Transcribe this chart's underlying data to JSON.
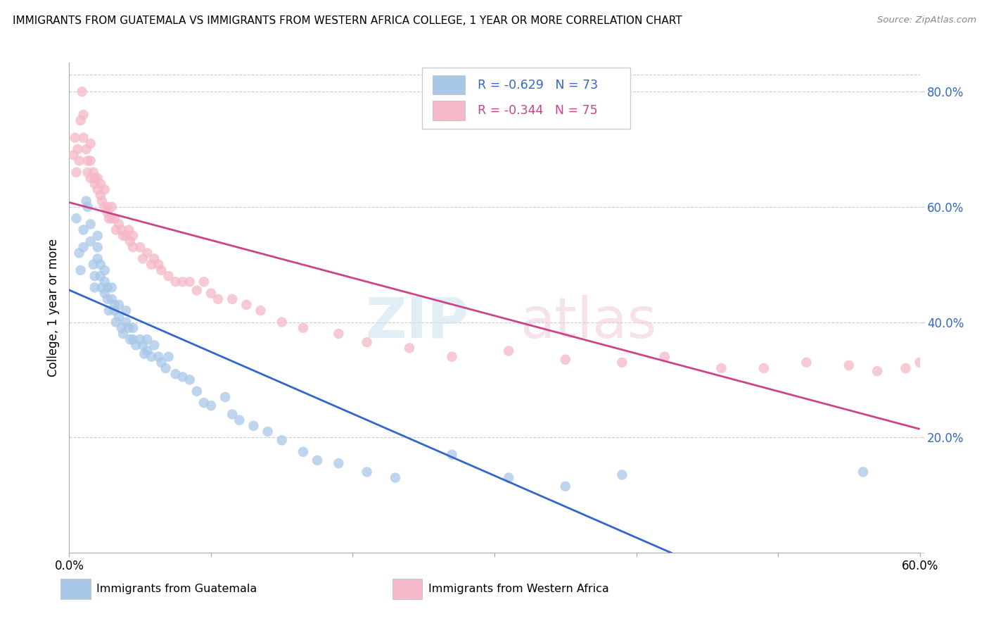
{
  "title": "IMMIGRANTS FROM GUATEMALA VS IMMIGRANTS FROM WESTERN AFRICA COLLEGE, 1 YEAR OR MORE CORRELATION CHART",
  "source": "Source: ZipAtlas.com",
  "ylabel": "College, 1 year or more",
  "xlim": [
    0.0,
    0.6
  ],
  "ylim": [
    0.0,
    0.85
  ],
  "R_blue": -0.629,
  "N_blue": 73,
  "R_pink": -0.344,
  "N_pink": 75,
  "color_blue": "#a8c8e8",
  "color_pink": "#f4b8c8",
  "line_color_blue": "#3366cc",
  "line_color_pink": "#cc4488",
  "legend_blue_label": "Immigrants from Guatemala",
  "legend_pink_label": "Immigrants from Western Africa",
  "watermark_zip": "ZIP",
  "watermark_atlas": "atlas",
  "guatemala_x": [
    0.005,
    0.007,
    0.008,
    0.01,
    0.01,
    0.012,
    0.013,
    0.015,
    0.015,
    0.017,
    0.018,
    0.018,
    0.02,
    0.02,
    0.02,
    0.022,
    0.022,
    0.023,
    0.025,
    0.025,
    0.025,
    0.027,
    0.027,
    0.028,
    0.03,
    0.03,
    0.032,
    0.032,
    0.033,
    0.035,
    0.035,
    0.037,
    0.038,
    0.04,
    0.04,
    0.042,
    0.043,
    0.045,
    0.045,
    0.047,
    0.05,
    0.052,
    0.053,
    0.055,
    0.055,
    0.058,
    0.06,
    0.063,
    0.065,
    0.068,
    0.07,
    0.075,
    0.08,
    0.085,
    0.09,
    0.095,
    0.1,
    0.11,
    0.115,
    0.12,
    0.13,
    0.14,
    0.15,
    0.165,
    0.175,
    0.19,
    0.21,
    0.23,
    0.27,
    0.31,
    0.35,
    0.39,
    0.56
  ],
  "guatemala_y": [
    0.58,
    0.52,
    0.49,
    0.56,
    0.53,
    0.61,
    0.6,
    0.57,
    0.54,
    0.5,
    0.48,
    0.46,
    0.55,
    0.53,
    0.51,
    0.5,
    0.48,
    0.46,
    0.49,
    0.47,
    0.45,
    0.46,
    0.44,
    0.42,
    0.46,
    0.44,
    0.43,
    0.42,
    0.4,
    0.43,
    0.41,
    0.39,
    0.38,
    0.42,
    0.4,
    0.39,
    0.37,
    0.39,
    0.37,
    0.36,
    0.37,
    0.36,
    0.345,
    0.37,
    0.35,
    0.34,
    0.36,
    0.34,
    0.33,
    0.32,
    0.34,
    0.31,
    0.305,
    0.3,
    0.28,
    0.26,
    0.255,
    0.27,
    0.24,
    0.23,
    0.22,
    0.21,
    0.195,
    0.175,
    0.16,
    0.155,
    0.14,
    0.13,
    0.17,
    0.13,
    0.115,
    0.135,
    0.14
  ],
  "western_africa_x": [
    0.003,
    0.004,
    0.005,
    0.006,
    0.007,
    0.008,
    0.009,
    0.01,
    0.01,
    0.012,
    0.013,
    0.013,
    0.015,
    0.015,
    0.015,
    0.017,
    0.018,
    0.018,
    0.02,
    0.02,
    0.022,
    0.022,
    0.023,
    0.025,
    0.025,
    0.027,
    0.027,
    0.028,
    0.03,
    0.03,
    0.032,
    0.033,
    0.035,
    0.037,
    0.038,
    0.04,
    0.042,
    0.043,
    0.045,
    0.045,
    0.05,
    0.052,
    0.055,
    0.058,
    0.06,
    0.063,
    0.065,
    0.07,
    0.075,
    0.08,
    0.085,
    0.09,
    0.095,
    0.1,
    0.105,
    0.115,
    0.125,
    0.135,
    0.15,
    0.165,
    0.19,
    0.21,
    0.24,
    0.27,
    0.31,
    0.35,
    0.39,
    0.42,
    0.46,
    0.49,
    0.52,
    0.55,
    0.57,
    0.59,
    0.6
  ],
  "western_africa_y": [
    0.69,
    0.72,
    0.66,
    0.7,
    0.68,
    0.75,
    0.8,
    0.76,
    0.72,
    0.7,
    0.68,
    0.66,
    0.71,
    0.68,
    0.65,
    0.66,
    0.65,
    0.64,
    0.65,
    0.63,
    0.64,
    0.62,
    0.61,
    0.63,
    0.6,
    0.6,
    0.59,
    0.58,
    0.6,
    0.58,
    0.58,
    0.56,
    0.57,
    0.56,
    0.55,
    0.55,
    0.56,
    0.54,
    0.55,
    0.53,
    0.53,
    0.51,
    0.52,
    0.5,
    0.51,
    0.5,
    0.49,
    0.48,
    0.47,
    0.47,
    0.47,
    0.455,
    0.47,
    0.45,
    0.44,
    0.44,
    0.43,
    0.42,
    0.4,
    0.39,
    0.38,
    0.365,
    0.355,
    0.34,
    0.35,
    0.335,
    0.33,
    0.34,
    0.32,
    0.32,
    0.33,
    0.325,
    0.315,
    0.32,
    0.33
  ]
}
